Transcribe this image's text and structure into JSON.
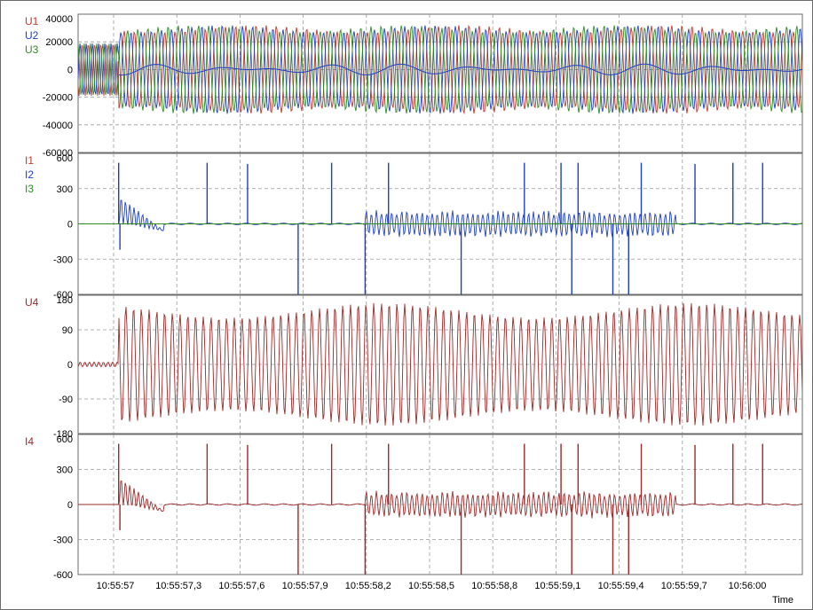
{
  "chart_data": {
    "type": "line",
    "x_label": "Time",
    "x_ticks": [
      "10:55:57",
      "10:55:57,3",
      "10:55:57,6",
      "10:55:57,9",
      "10:55:58,2",
      "10:55:58,5",
      "10:55:58,8",
      "10:55:59,1",
      "10:55:59,4",
      "10:55:59,7",
      "10:56:00"
    ],
    "grid": true,
    "panels": [
      {
        "id": "voltage-phases",
        "channels": [
          {
            "name": "U1",
            "color": "#c0392b"
          },
          {
            "name": "U2",
            "color": "#1f3fbf"
          },
          {
            "name": "U3",
            "color": "#2e8b22"
          }
        ],
        "ylim": [
          -60000,
          40000
        ],
        "y_ticks": [
          "40000",
          "20000",
          "0",
          "-20000",
          "-40000",
          "-60000"
        ],
        "y_tick_values": [
          40000,
          20000,
          0,
          -20000,
          -40000,
          -60000
        ],
        "pre_event_amplitude": 19000,
        "post_event_amplitude": 32000
      },
      {
        "id": "current-phases",
        "channels": [
          {
            "name": "I1",
            "color": "#c0392b"
          },
          {
            "name": "I2",
            "color": "#1f3fbf"
          },
          {
            "name": "I3",
            "color": "#2e8b22"
          }
        ],
        "ylim": [
          -600,
          600
        ],
        "y_ticks": [
          "600",
          "300",
          "0",
          "-300",
          "-600"
        ],
        "y_tick_values": [
          600,
          300,
          0,
          -300,
          -600
        ]
      },
      {
        "id": "voltage-u4",
        "channels": [
          {
            "name": "U4",
            "color": "#9b2a2a"
          }
        ],
        "ylim": [
          -180,
          180
        ],
        "y_ticks": [
          "180",
          "90",
          "0",
          "-90",
          "-180"
        ],
        "y_tick_values": [
          180,
          90,
          0,
          -90,
          -180
        ],
        "pre_event_amplitude": 6,
        "post_event_amplitude": 160
      },
      {
        "id": "current-i4",
        "channels": [
          {
            "name": "I4",
            "color": "#9b2a2a"
          }
        ],
        "ylim": [
          -600,
          600
        ],
        "y_ticks": [
          "600",
          "300",
          "0",
          "-300",
          "-600"
        ],
        "y_tick_values": [
          600,
          300,
          0,
          -300,
          -600
        ]
      }
    ],
    "event_time": "10:55:57",
    "current_spikes": [
      {
        "x_index": 0.08,
        "value": 520
      },
      {
        "x_index": 0.1,
        "value": -220
      },
      {
        "x_index": 1.48,
        "value": 520
      },
      {
        "x_index": 2.12,
        "value": 510
      },
      {
        "x_index": 2.92,
        "value": -600
      },
      {
        "x_index": 3.45,
        "value": 520
      },
      {
        "x_index": 3.98,
        "value": -600
      },
      {
        "x_index": 4.35,
        "value": 520
      },
      {
        "x_index": 5.5,
        "value": -600
      },
      {
        "x_index": 6.5,
        "value": 520
      },
      {
        "x_index": 7.08,
        "value": 520
      },
      {
        "x_index": 7.25,
        "value": -600
      },
      {
        "x_index": 7.35,
        "value": 520
      },
      {
        "x_index": 7.9,
        "value": -600
      },
      {
        "x_index": 8.15,
        "value": -600
      },
      {
        "x_index": 8.35,
        "value": 520
      },
      {
        "x_index": 9.2,
        "value": 510
      },
      {
        "x_index": 9.8,
        "value": 520
      },
      {
        "x_index": 10.27,
        "value": 520
      }
    ],
    "current_oscillation_bursts": [
      {
        "start_index": 3.98,
        "end_index": 8.9,
        "amplitude": 120
      },
      {
        "start_index": 0.08,
        "end_index": 0.8,
        "amplitude": 90
      }
    ]
  }
}
